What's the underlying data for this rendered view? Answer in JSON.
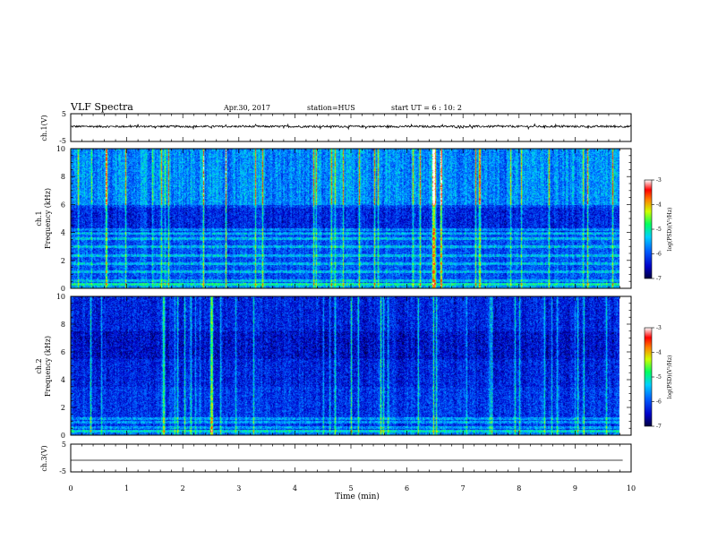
{
  "header": {
    "title": "VLF Spectra",
    "date": "Apr.30, 2017",
    "station": "station=HUS",
    "start_time": "start UT =  6 : 10: 2"
  },
  "chart_data": [
    {
      "type": "line",
      "name": "ch1-waveform",
      "ylabel": "ch.1(V)",
      "ylim": [
        -5,
        5
      ],
      "yticks": [
        "5",
        "-5"
      ],
      "xlim": [
        0,
        10
      ],
      "baseline": 0.4,
      "noise_amplitude": 0.35,
      "line_color": "#000000"
    },
    {
      "type": "heatmap",
      "name": "ch1-spectrogram",
      "ylabel": "ch.1\nFrequency (kHz)",
      "ylabel_lines": [
        "ch.1",
        "Frequency (kHz)"
      ],
      "ylim": [
        0,
        10
      ],
      "yticks": [
        "0",
        "2",
        "4",
        "6",
        "8",
        "10"
      ],
      "xlim": [
        0,
        9.85
      ],
      "colorbar": {
        "label": "log(PSD)(V²/Hz)",
        "ticks": [
          "-3",
          "-4",
          "-5",
          "-6",
          "-7"
        ],
        "range": [
          -7,
          -3
        ]
      },
      "harmonic_lines_khz": [
        0.3,
        0.6,
        1.2,
        1.8,
        2.4,
        3.0,
        3.6,
        4.0,
        4.2
      ],
      "background_level": -6.3
    },
    {
      "type": "heatmap",
      "name": "ch2-spectrogram",
      "ylabel": "ch.2\nFrequency (kHz)",
      "ylabel_lines": [
        "ch.2",
        "Frequency (kHz)"
      ],
      "ylim": [
        0,
        10
      ],
      "yticks": [
        "0",
        "2",
        "4",
        "6",
        "8",
        "10"
      ],
      "xlim": [
        0,
        9.85
      ],
      "colorbar": {
        "label": "log(PSD)(V²/Hz)",
        "ticks": [
          "-3",
          "-4",
          "-5",
          "-6",
          "-7"
        ],
        "range": [
          -7,
          -3
        ]
      },
      "harmonic_lines_khz": [
        0.3,
        0.6,
        1.0,
        1.2
      ],
      "background_level": -6.5
    },
    {
      "type": "line",
      "name": "ch3-waveform",
      "ylabel": "ch.3(V)",
      "ylim": [
        -5,
        5
      ],
      "yticks": [
        "5",
        "-5"
      ],
      "xlim": [
        0,
        9.85
      ],
      "baseline": -0.8,
      "noise_amplitude": 0,
      "line_color": "#000000"
    }
  ],
  "x_axis": {
    "label": "Time (min)",
    "ticks": [
      "0",
      "1",
      "2",
      "3",
      "4",
      "5",
      "6",
      "7",
      "8",
      "9",
      "10"
    ],
    "range": [
      0,
      10
    ]
  }
}
